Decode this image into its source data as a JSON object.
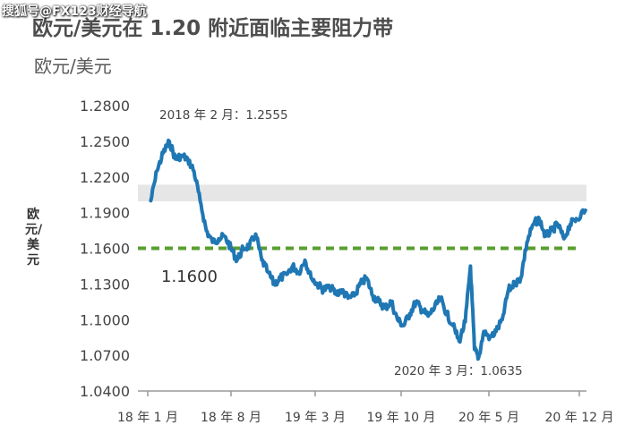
{
  "watermark": "搜狐号@FX123财经导航",
  "title": "欧元/美元在 1.20 附近面临主要阻力带",
  "subtitle": "欧元/美元",
  "colors": {
    "line": "#1f77b4",
    "support": "#5a9e2f",
    "band": "#e6e6e6",
    "axis": "#999999"
  },
  "chart_data": {
    "type": "line",
    "ylabel": "欧元/美元",
    "ylim": [
      1.04,
      1.28
    ],
    "yticks": [
      "1.2800",
      "1.2500",
      "1.2200",
      "1.1900",
      "1.1600",
      "1.1300",
      "1.1000",
      "1.0700",
      "1.0400"
    ],
    "xticks": [
      "18 年 1 月",
      "18 年 8 月",
      "19 年 3 月",
      "19 年 10 月",
      "20 年 5 月",
      "20 年 12 月"
    ],
    "resistance_band": [
      1.1995,
      1.2135
    ],
    "support_line": 1.16,
    "annotations": [
      {
        "key": "high",
        "text": "2018 年 2 月：1.2555"
      },
      {
        "key": "support",
        "text": "1.1600"
      },
      {
        "key": "low",
        "text": "2020 年 3 月：1.0635"
      }
    ],
    "series": [
      {
        "x": [
          "2018-01",
          "2018-01",
          "2018-02",
          "2018-02",
          "2018-03",
          "2018-03",
          "2018-04",
          "2018-04",
          "2018-05",
          "2018-05",
          "2018-06",
          "2018-06",
          "2018-07",
          "2018-07",
          "2018-08",
          "2018-08",
          "2018-09",
          "2018-09",
          "2018-10",
          "2018-10",
          "2018-11",
          "2018-11",
          "2018-12",
          "2018-12",
          "2019-01",
          "2019-01",
          "2019-02",
          "2019-02",
          "2019-03",
          "2019-03",
          "2019-04",
          "2019-04",
          "2019-05",
          "2019-05",
          "2019-06",
          "2019-06",
          "2019-07",
          "2019-07",
          "2019-08",
          "2019-08",
          "2019-09",
          "2019-09",
          "2019-10",
          "2019-10",
          "2019-11",
          "2019-11",
          "2019-12",
          "2019-12",
          "2020-01",
          "2020-01",
          "2020-02",
          "2020-02",
          "2020-03",
          "2020-03",
          "2020-03",
          "2020-04",
          "2020-04",
          "2020-05",
          "2020-05",
          "2020-06",
          "2020-06",
          "2020-07",
          "2020-07",
          "2020-08",
          "2020-08",
          "2020-09",
          "2020-09",
          "2020-10",
          "2020-10",
          "2020-11",
          "2020-11",
          "2020-12"
        ],
        "values": [
          1.2,
          1.225,
          1.24,
          1.25,
          1.235,
          1.238,
          1.235,
          1.225,
          1.2,
          1.175,
          1.165,
          1.168,
          1.17,
          1.16,
          1.15,
          1.16,
          1.162,
          1.172,
          1.15,
          1.14,
          1.13,
          1.135,
          1.138,
          1.145,
          1.14,
          1.15,
          1.135,
          1.13,
          1.125,
          1.128,
          1.122,
          1.125,
          1.118,
          1.12,
          1.13,
          1.135,
          1.12,
          1.115,
          1.11,
          1.115,
          1.1,
          1.095,
          1.105,
          1.115,
          1.108,
          1.103,
          1.11,
          1.118,
          1.105,
          1.095,
          1.082,
          1.098,
          1.145,
          1.075,
          1.068,
          1.09,
          1.085,
          1.09,
          1.1,
          1.125,
          1.13,
          1.135,
          1.165,
          1.18,
          1.185,
          1.17,
          1.175,
          1.18,
          1.168,
          1.18,
          1.185,
          1.192
        ]
      }
    ]
  }
}
